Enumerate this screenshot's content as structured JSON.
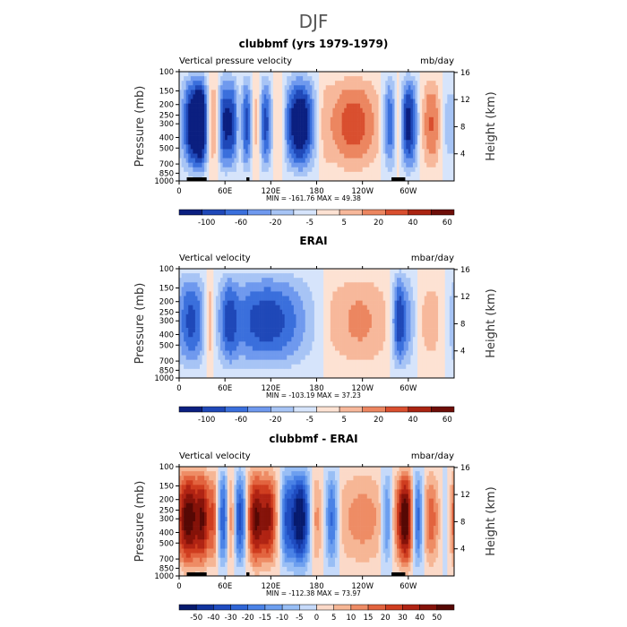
{
  "figure_title": "DJF",
  "colors": {
    "levels11": [
      "#0b1f80",
      "#1f48b8",
      "#3a6fdc",
      "#6f99ee",
      "#a7c4f5",
      "#d6e4fb",
      "#fde2d3",
      "#f7b89b",
      "#ec8660",
      "#d94f2f",
      "#aa2412",
      "#6e0e08"
    ],
    "levels15": [
      "#061a6e",
      "#10339e",
      "#1f4cc0",
      "#2f65d6",
      "#4a82e6",
      "#6d9fef",
      "#98bef5",
      "#c6dafa",
      "#fbd9c8",
      "#f6b695",
      "#ee8c65",
      "#e2633e",
      "#cf3d1f",
      "#b02313",
      "#851209",
      "#560804"
    ]
  },
  "chart_data": [
    {
      "type": "heatmap",
      "title": "clubbmf (yrs 1979-1979)",
      "left_label": "Vertical pressure velocity",
      "units": "mb/day",
      "ylabel": "Pressure (mb)",
      "y2label": "Height (km)",
      "xticks": [
        "0",
        "60E",
        "120E",
        "180",
        "120W",
        "60W"
      ],
      "xtick_lons": [
        0,
        60,
        120,
        180,
        240,
        300
      ],
      "yticks": [
        "100",
        "150",
        "200",
        "250",
        "300",
        "400",
        "500",
        "700",
        "850",
        "1000"
      ],
      "yticks_p": [
        100,
        150,
        200,
        250,
        300,
        400,
        500,
        700,
        850,
        1000
      ],
      "y2ticks": [
        "4",
        "8",
        "12",
        "16"
      ],
      "y2ticks_km": [
        4,
        8,
        12,
        16
      ],
      "xlim": [
        0,
        360
      ],
      "ylim": [
        1000,
        100
      ],
      "min": "-161.76",
      "max": "49.38",
      "stats": "MIN = -161.76   MAX =   49.38",
      "colorbar_labels": [
        "-100",
        "-60",
        "-20",
        "-5",
        "5",
        "20",
        "40",
        "60"
      ],
      "field": [
        {
          "lon": 18,
          "amp": -1.2,
          "w": 10
        },
        {
          "lon": 30,
          "amp": -0.9,
          "w": 6
        },
        {
          "lon": 45,
          "amp": 0.5,
          "w": 6
        },
        {
          "lon": 58,
          "amp": -0.9,
          "w": 6
        },
        {
          "lon": 70,
          "amp": -0.8,
          "w": 6
        },
        {
          "lon": 80,
          "amp": 0.3,
          "w": 4
        },
        {
          "lon": 88,
          "amp": -0.9,
          "w": 6
        },
        {
          "lon": 102,
          "amp": 0.6,
          "w": 5
        },
        {
          "lon": 112,
          "amp": -0.9,
          "w": 7
        },
        {
          "lon": 130,
          "amp": 0.4,
          "w": 6
        },
        {
          "lon": 158,
          "amp": -1.3,
          "w": 14
        },
        {
          "lon": 190,
          "amp": 0.2,
          "w": 6
        },
        {
          "lon": 228,
          "amp": 0.7,
          "w": 24
        },
        {
          "lon": 275,
          "amp": -0.8,
          "w": 6
        },
        {
          "lon": 288,
          "amp": 0.5,
          "w": 4
        },
        {
          "lon": 300,
          "amp": -1.1,
          "w": 9
        },
        {
          "lon": 330,
          "amp": 0.6,
          "w": 10
        },
        {
          "lon": 350,
          "amp": -0.3,
          "w": 6
        }
      ],
      "topo": true
    },
    {
      "type": "heatmap",
      "title": "ERAI",
      "left_label": "Vertical velocity",
      "units": "mbar/day",
      "ylabel": "Pressure (mb)",
      "y2label": "Height (km)",
      "xticks": [
        "0",
        "60E",
        "120E",
        "180",
        "120W",
        "60W"
      ],
      "xtick_lons": [
        0,
        60,
        120,
        180,
        240,
        300
      ],
      "yticks": [
        "100",
        "150",
        "200",
        "250",
        "300",
        "400",
        "500",
        "700",
        "850",
        "1000"
      ],
      "yticks_p": [
        100,
        150,
        200,
        250,
        300,
        400,
        500,
        700,
        850,
        1000
      ],
      "y2ticks": [
        "4",
        "8",
        "12",
        "16"
      ],
      "y2ticks_km": [
        4,
        8,
        12,
        16
      ],
      "xlim": [
        0,
        360
      ],
      "ylim": [
        1000,
        100
      ],
      "min": "-103.19",
      "max": "37.23",
      "stats": "MIN = -103.19   MAX =   37.23",
      "colorbar_labels": [
        "-100",
        "-60",
        "-20",
        "-5",
        "5",
        "20",
        "40",
        "60"
      ],
      "field": [
        {
          "lon": 15,
          "amp": -0.8,
          "w": 14
        },
        {
          "lon": 40,
          "amp": 0.6,
          "w": 5
        },
        {
          "lon": 65,
          "amp": -0.5,
          "w": 8
        },
        {
          "lon": 115,
          "amp": -0.9,
          "w": 40
        },
        {
          "lon": 200,
          "amp": 0.1,
          "w": 8
        },
        {
          "lon": 235,
          "amp": 0.45,
          "w": 30
        },
        {
          "lon": 287,
          "amp": -0.9,
          "w": 6
        },
        {
          "lon": 300,
          "amp": -0.5,
          "w": 8
        },
        {
          "lon": 330,
          "amp": 0.3,
          "w": 14
        }
      ],
      "topo": false
    },
    {
      "type": "heatmap",
      "title": "clubbmf - ERAI",
      "left_label": "Vertical velocity",
      "units": "mbar/day",
      "ylabel": "Pressure (mb)",
      "y2label": "Height (km)",
      "xticks": [
        "0",
        "60E",
        "120E",
        "180",
        "120W",
        "60W"
      ],
      "xtick_lons": [
        0,
        60,
        120,
        180,
        240,
        300
      ],
      "yticks": [
        "100",
        "150",
        "200",
        "250",
        "300",
        "400",
        "500",
        "700",
        "850",
        "1000"
      ],
      "yticks_p": [
        100,
        150,
        200,
        250,
        300,
        400,
        500,
        700,
        850,
        1000
      ],
      "y2ticks": [
        "4",
        "8",
        "12",
        "16"
      ],
      "y2ticks_km": [
        4,
        8,
        12,
        16
      ],
      "xlim": [
        0,
        360
      ],
      "ylim": [
        1000,
        100
      ],
      "min": "-112.38",
      "max": "73.97",
      "stats": "MIN = -112.38   MAX =   73.97",
      "colorbar_labels": [
        "-50",
        "-40",
        "-30",
        "-20",
        "-15",
        "-10",
        "-5",
        "0",
        "5",
        "10",
        "15",
        "20",
        "30",
        "40",
        "50"
      ],
      "field": [
        {
          "lon": 12,
          "amp": 1.1,
          "w": 12
        },
        {
          "lon": 32,
          "amp": 0.7,
          "w": 6
        },
        {
          "lon": 45,
          "amp": 0.5,
          "w": 4
        },
        {
          "lon": 58,
          "amp": -0.7,
          "w": 5
        },
        {
          "lon": 68,
          "amp": 0.5,
          "w": 4
        },
        {
          "lon": 80,
          "amp": -0.8,
          "w": 6
        },
        {
          "lon": 100,
          "amp": 1.0,
          "w": 8
        },
        {
          "lon": 118,
          "amp": 0.8,
          "w": 7
        },
        {
          "lon": 140,
          "amp": -0.5,
          "w": 5
        },
        {
          "lon": 158,
          "amp": -1.2,
          "w": 10
        },
        {
          "lon": 178,
          "amp": 0.4,
          "w": 6
        },
        {
          "lon": 200,
          "amp": -0.7,
          "w": 6
        },
        {
          "lon": 240,
          "amp": 0.35,
          "w": 28
        },
        {
          "lon": 272,
          "amp": -0.6,
          "w": 5
        },
        {
          "lon": 296,
          "amp": 1.1,
          "w": 8
        },
        {
          "lon": 312,
          "amp": -0.8,
          "w": 5
        },
        {
          "lon": 330,
          "amp": 0.5,
          "w": 8
        },
        {
          "lon": 350,
          "amp": -0.3,
          "w": 6
        }
      ],
      "topo": true
    }
  ]
}
